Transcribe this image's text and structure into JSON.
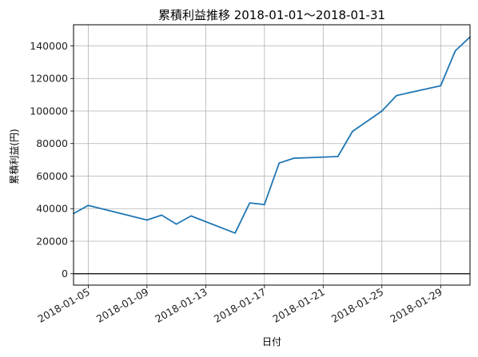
{
  "chart_data": {
    "type": "line",
    "title": "累積利益推移  2018-01-01〜2018-01-31",
    "xlabel": "日付",
    "ylabel": "累積利益(円)",
    "xlim": [
      "2018-01-04",
      "2018-01-31"
    ],
    "ylim": [
      -7000,
      153000
    ],
    "x_ticks": [
      "2018-01-05",
      "2018-01-09",
      "2018-01-13",
      "2018-01-17",
      "2018-01-21",
      "2018-01-25",
      "2018-01-29"
    ],
    "y_ticks": [
      0,
      20000,
      40000,
      60000,
      80000,
      100000,
      120000,
      140000
    ],
    "grid": true,
    "zero_line": true,
    "series": [
      {
        "color": "#1f77b4",
        "x": [
          "2018-01-04",
          "2018-01-05",
          "2018-01-09",
          "2018-01-10",
          "2018-01-11",
          "2018-01-12",
          "2018-01-15",
          "2018-01-16",
          "2018-01-17",
          "2018-01-18",
          "2018-01-19",
          "2018-01-22",
          "2018-01-23",
          "2018-01-25",
          "2018-01-26",
          "2018-01-29",
          "2018-01-30",
          "2018-01-31"
        ],
        "values": [
          37000,
          42000,
          33000,
          36000,
          30500,
          35500,
          25000,
          43500,
          42500,
          68000,
          71000,
          72000,
          87500,
          100000,
          109500,
          115500,
          137000,
          145500
        ]
      }
    ]
  }
}
